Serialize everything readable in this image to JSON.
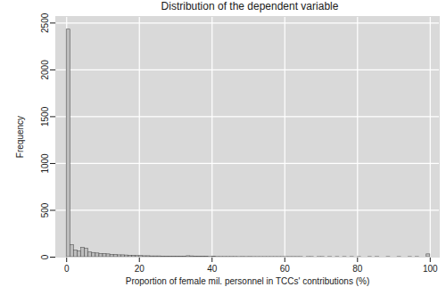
{
  "chart_data": {
    "type": "histogram",
    "title": "Distribution of the dependent variable",
    "x_label": "Proportion of female mil. personnel in TCCs' contributions (%)",
    "y_label": "Frequency",
    "bins": [
      0,
      1,
      2,
      3,
      4,
      5,
      6,
      7,
      8,
      9,
      10,
      11,
      12,
      13,
      14,
      15,
      16,
      17,
      18,
      19,
      20,
      21,
      22,
      23,
      24,
      25,
      26,
      27,
      28,
      29,
      30,
      31,
      32,
      33,
      34,
      35,
      36,
      37,
      38,
      39,
      40,
      41,
      42,
      43,
      44,
      45,
      46,
      47,
      48,
      49,
      50,
      51,
      52,
      53,
      54,
      55,
      56,
      57,
      58,
      59,
      60,
      61,
      62,
      63,
      64,
      65,
      66,
      67,
      68,
      69,
      70,
      71,
      72,
      73,
      74,
      75,
      76,
      77,
      78,
      79,
      80,
      81,
      82,
      83,
      84,
      85,
      86,
      87,
      88,
      89,
      90,
      91,
      92,
      93,
      94,
      95,
      96,
      97,
      98,
      99,
      100
    ],
    "values": [
      2430,
      130,
      70,
      60,
      100,
      90,
      50,
      45,
      40,
      35,
      35,
      30,
      25,
      25,
      20,
      20,
      18,
      15,
      15,
      12,
      12,
      10,
      10,
      8,
      8,
      8,
      6,
      6,
      5,
      5,
      5,
      5,
      4,
      10,
      8,
      4,
      3,
      3,
      3,
      2,
      3,
      2,
      2,
      2,
      2,
      2,
      2,
      1,
      2,
      1,
      2,
      1,
      1,
      1,
      1,
      1,
      1,
      1,
      1,
      1,
      1,
      1,
      1,
      1,
      1,
      0,
      1,
      1,
      0,
      1,
      1,
      0,
      1,
      0,
      1,
      0,
      1,
      0,
      1,
      0,
      1,
      0,
      0,
      1,
      0,
      1,
      0,
      0,
      1,
      0,
      0,
      1,
      0,
      0,
      1,
      0,
      1,
      0,
      0,
      30
    ],
    "color": "#bdbdbd",
    "xlim": [
      -3,
      102.5
    ],
    "ylim": [
      0,
      2570
    ],
    "xticks": [
      0,
      20,
      40,
      60,
      80,
      100
    ],
    "yticks": [
      0,
      500,
      1000,
      1500,
      2000,
      2500
    ],
    "grid": true
  }
}
